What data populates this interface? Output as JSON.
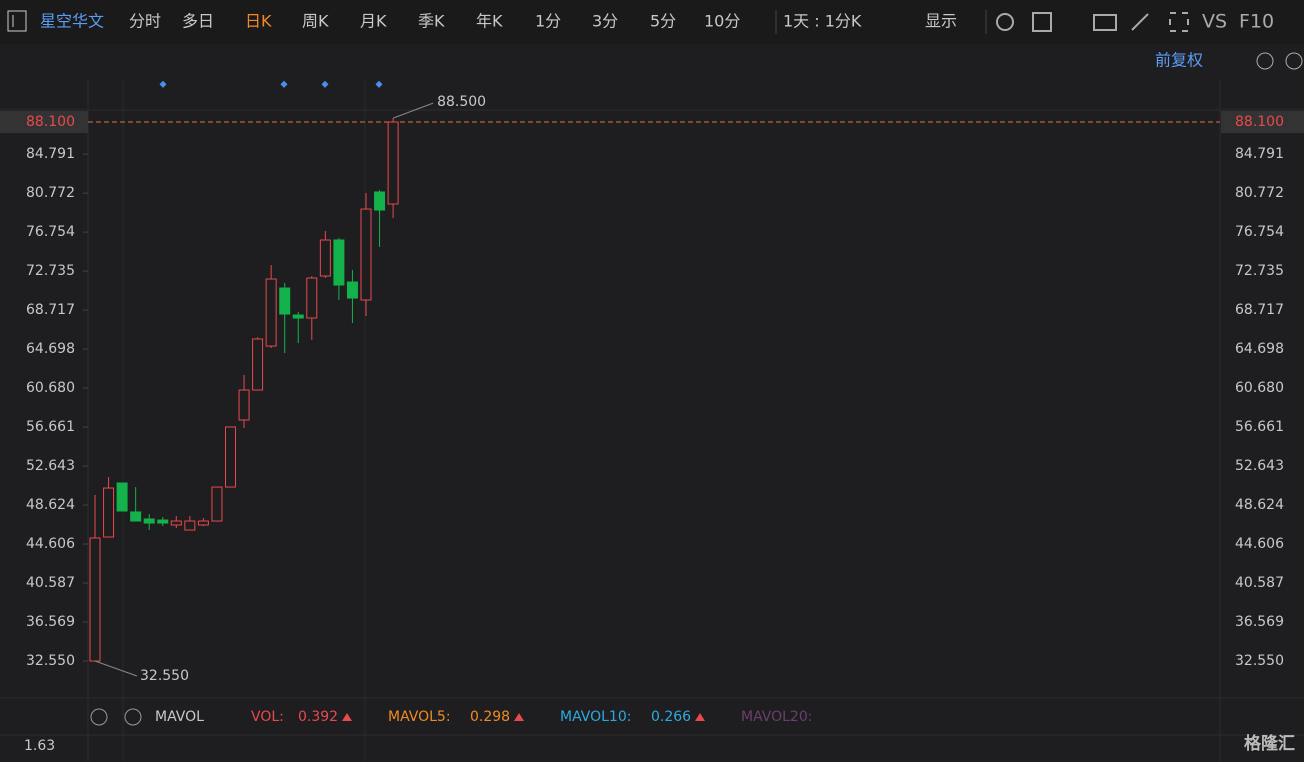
{
  "toolbar": {
    "stock_name": "星空华文",
    "tabs": [
      "分时",
      "多日",
      "日K",
      "周K",
      "月K",
      "季K",
      "年K",
      "1分",
      "3分",
      "5分",
      "10分"
    ],
    "active_tab": "日K",
    "period": "1天 : 1分K",
    "display": "显示",
    "vs": "VS",
    "f10": "F10"
  },
  "adjust": "前复权",
  "chart_data": {
    "type": "candlestick",
    "categories": [
      null,
      null,
      null,
      null,
      null,
      null,
      null,
      null,
      null,
      null,
      null,
      null,
      null,
      null,
      null,
      null,
      null,
      null,
      null,
      null,
      null,
      null,
      null
    ],
    "open": [
      32.55,
      45.33,
      50.9,
      47.91,
      47.19,
      47.08,
      46.57,
      46.05,
      46.57,
      46.98,
      50.48,
      57.39,
      60.48,
      65.01,
      70.99,
      68.21,
      67.9,
      72.23,
      75.94,
      71.61,
      69.76,
      80.89,
      79.65
    ],
    "high": [
      49.66,
      51.51,
      50.9,
      50.48,
      47.7,
      47.39,
      47.49,
      47.49,
      47.29,
      50.48,
      56.67,
      62.03,
      65.94,
      73.36,
      71.51,
      68.52,
      72.23,
      76.87,
      76.15,
      72.85,
      80.78,
      81.09,
      88.5
    ],
    "low": [
      32.55,
      45.33,
      48.01,
      46.98,
      46.05,
      46.46,
      46.26,
      46.05,
      46.46,
      46.98,
      50.48,
      56.56,
      60.48,
      64.81,
      64.29,
      65.32,
      65.63,
      72.02,
      69.76,
      67.38,
      68.11,
      75.22,
      78.21
    ],
    "close": [
      45.23,
      50.38,
      48.01,
      46.98,
      46.77,
      46.77,
      46.98,
      46.98,
      46.98,
      50.48,
      56.67,
      60.48,
      65.74,
      71.92,
      68.31,
      67.9,
      72.02,
      75.94,
      71.3,
      69.96,
      79.13,
      79.03,
      88.1
    ],
    "up_color": "#e8494d",
    "down_color": "#13b24a",
    "ylim": [
      28.74,
      92.43
    ],
    "yticks": [
      {
        "value": 32.55,
        "label": "32.550"
      },
      36.569,
      40.587,
      44.606,
      48.624,
      52.643,
      56.661,
      {
        "value": 60.68,
        "label": "60.680"
      },
      64.698,
      68.717,
      72.735,
      76.754,
      80.772,
      84.791,
      {
        "value": 88.1,
        "label": "88.100"
      }
    ],
    "current_price_tick": 14,
    "annotations": {
      "high": "88.500",
      "low": "32.550"
    }
  },
  "volume_panel": {
    "indicator": "MAVOL",
    "vol_label": "VOL:",
    "vol": "0.392",
    "mavol5_label": "MAVOL5:",
    "mavol5": "0.298",
    "mavol10_label": "MAVOL10:",
    "mavol10": "0.266",
    "mavol20_label": "MAVOL20:",
    "ytick": "1.63"
  },
  "watermark": "格隆汇"
}
